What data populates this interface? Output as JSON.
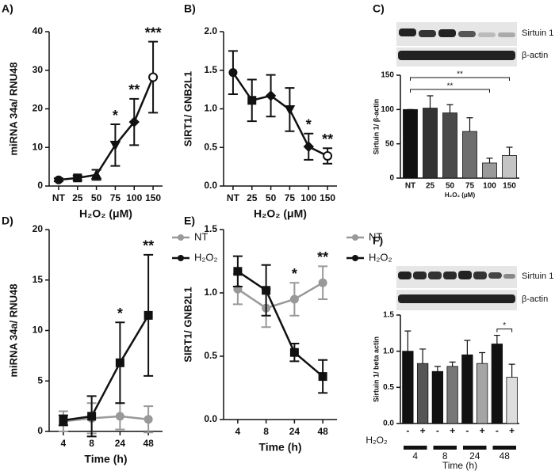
{
  "chart_data": [
    {
      "type": "line",
      "label": "A)",
      "ylabel": "miRNA 34a/ RNU48",
      "xlabel": "H₂O₂ (μM)",
      "categories": [
        "NT",
        "25",
        "50",
        "75",
        "100",
        "150"
      ],
      "values": [
        1.6,
        2.1,
        2.9,
        10.6,
        16.6,
        28.2
      ],
      "errors": [
        0.4,
        0.6,
        1.3,
        5.4,
        6.0,
        9.2
      ],
      "markers": [
        "circle",
        "square",
        "triangle",
        "triangle-down",
        "diamond",
        "open-circle"
      ],
      "color": "#111111",
      "annotations": [
        null,
        null,
        null,
        "*",
        "**",
        "***"
      ],
      "ylim": [
        0,
        40
      ],
      "yticks": [
        0,
        10,
        20,
        30,
        40
      ]
    },
    {
      "type": "line",
      "label": "B)",
      "ylabel": "SIRT1/ GNB2L1",
      "xlabel": "H₂O₂ (μM)",
      "categories": [
        "NT",
        "25",
        "50",
        "75",
        "100",
        "150"
      ],
      "values": [
        1.47,
        1.11,
        1.17,
        0.99,
        0.51,
        0.39
      ],
      "errors": [
        0.28,
        0.27,
        0.27,
        0.28,
        0.17,
        0.1
      ],
      "markers": [
        "circle",
        "square",
        "diamond",
        "triangle-down",
        "diamond",
        "open-circle"
      ],
      "color": "#111111",
      "annotations": [
        null,
        null,
        null,
        null,
        "*",
        "**"
      ],
      "ylim": [
        0,
        2
      ],
      "yticks": [
        {
          "value": 0,
          "label": "0.0"
        },
        0.5,
        {
          "value": 1,
          "label": "1.0"
        },
        1.5,
        {
          "value": 2,
          "label": "2.0"
        }
      ]
    },
    {
      "type": "bar",
      "label": "C)",
      "ylabel": "Sirtuin 1/ β-actin",
      "xlabel": "H₂O₂ (μM)",
      "blot_labels": [
        "Sirtuin 1",
        "β-actin"
      ],
      "categories": [
        "NT",
        "25",
        "50",
        "75",
        "100",
        "150"
      ],
      "values": [
        100,
        102,
        95,
        68,
        22,
        33
      ],
      "errors": [
        0,
        18,
        12,
        20,
        7,
        12
      ],
      "colors": [
        "#111111",
        "#333333",
        "#4a4a4a",
        "#6e6e6e",
        "#9a9a9a",
        "#c4c4c4"
      ],
      "brackets": [
        {
          "from": 0,
          "to": 4,
          "text": "**"
        },
        {
          "from": 0,
          "to": 5,
          "text": "**"
        }
      ],
      "ylim": [
        0,
        150
      ],
      "yticks": [
        0,
        50,
        100,
        150
      ]
    },
    {
      "type": "line",
      "label": "D)",
      "ylabel": "miRNA 34a/ RNU48",
      "xlabel": "Time (h)",
      "categories": [
        "4",
        "8",
        "24",
        "48"
      ],
      "legend": "right",
      "series": [
        {
          "name": "NT",
          "color": "#999999",
          "marker": "circle",
          "values": [
            1.0,
            1.3,
            1.5,
            1.2
          ],
          "errors": [
            1.0,
            1.5,
            1.3,
            1.3
          ]
        },
        {
          "name": "H₂O₂",
          "color": "#111111",
          "marker": "square",
          "values": [
            1.1,
            1.5,
            6.8,
            11.5
          ],
          "errors": [
            0.5,
            2.0,
            4.0,
            6.0
          ]
        }
      ],
      "annotations": [
        null,
        null,
        "*",
        "**"
      ],
      "ylim": [
        0,
        20
      ],
      "yticks": [
        0,
        5,
        10,
        15,
        20
      ]
    },
    {
      "type": "line",
      "label": "E)",
      "ylabel": "SIRT1/ GNB2L1",
      "xlabel": "Time (h)",
      "categories": [
        "4",
        "8",
        "24",
        "48"
      ],
      "legend": "right",
      "series": [
        {
          "name": "NT",
          "color": "#999999",
          "marker": "circle",
          "values": [
            1.03,
            0.88,
            0.95,
            1.08
          ],
          "errors": [
            0.12,
            0.15,
            0.13,
            0.13
          ]
        },
        {
          "name": "H₂O₂",
          "color": "#111111",
          "marker": "square",
          "values": [
            1.17,
            1.02,
            0.53,
            0.34
          ],
          "errors": [
            0.12,
            0.2,
            0.07,
            0.13
          ]
        }
      ],
      "annotations": [
        null,
        null,
        "*",
        "**"
      ],
      "ylim": [
        0,
        1.5
      ],
      "yticks": [
        {
          "value": 0,
          "label": "0.0"
        },
        0.5,
        {
          "value": 1,
          "label": "1.0"
        },
        1.5
      ]
    },
    {
      "type": "bar",
      "label": "F)",
      "ylabel": "Sirtuin 1/ beta actin",
      "xlabel": "Time (h)",
      "blot_labels": [
        "Sirtuin 1",
        "β-actin"
      ],
      "categories": [
        "-",
        "+",
        "-",
        "+",
        "-",
        "+",
        "-",
        "+"
      ],
      "category_title": "H₂O₂",
      "groups": [
        "4",
        "8",
        "24",
        "48"
      ],
      "values": [
        1.0,
        0.83,
        0.72,
        0.79,
        0.95,
        0.83,
        1.1,
        0.64
      ],
      "errors": [
        0.28,
        0.2,
        0.07,
        0.06,
        0.2,
        0.15,
        0.12,
        0.18
      ],
      "colors": [
        "#111111",
        "#555555",
        "#111111",
        "#777777",
        "#111111",
        "#a5a5a5",
        "#111111",
        "#dddddd"
      ],
      "brackets": [
        {
          "from": 6,
          "to": 7,
          "text": "*"
        }
      ],
      "ylim": [
        0,
        1.5
      ],
      "yticks": [
        {
          "value": 0,
          "label": "0.0"
        },
        0.5,
        {
          "value": 1,
          "label": "1.0"
        },
        1.5
      ]
    }
  ]
}
